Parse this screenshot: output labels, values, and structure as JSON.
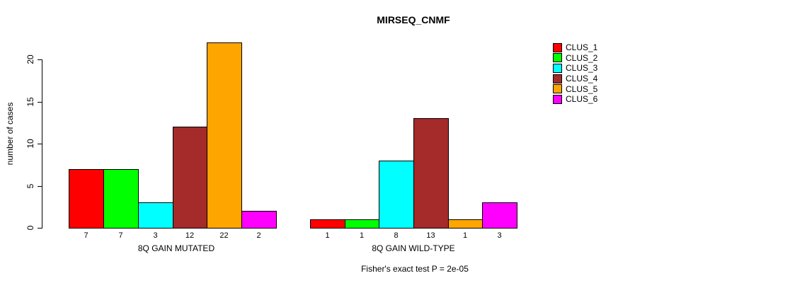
{
  "chart_data": {
    "type": "bar",
    "title": "MIRSEQ_CNMF",
    "ylabel": "number of cases",
    "ylim": [
      0,
      20
    ],
    "yticks": [
      0,
      5,
      10,
      15,
      20
    ],
    "grid": false,
    "legend_position": "right",
    "series_labels": [
      "CLUS_1",
      "CLUS_2",
      "CLUS_3",
      "CLUS_4",
      "CLUS_5",
      "CLUS_6"
    ],
    "series_colors": [
      "#ff0000",
      "#00ff00",
      "#00ffff",
      "#a52a2a",
      "#ffa500",
      "#ff00ff"
    ],
    "groups": [
      {
        "label": "8Q GAIN MUTATED",
        "values": [
          7,
          7,
          3,
          12,
          22,
          2
        ],
        "value_labels": [
          "7",
          "7",
          "3",
          "12",
          "22",
          "2"
        ]
      },
      {
        "label": "8Q GAIN WILD-TYPE",
        "values": [
          1,
          1,
          8,
          13,
          1,
          3
        ],
        "value_labels": [
          "1",
          "1",
          "8",
          "13",
          "1",
          "3"
        ]
      }
    ],
    "annotation": "Fisher's exact test P = 2e-05"
  }
}
